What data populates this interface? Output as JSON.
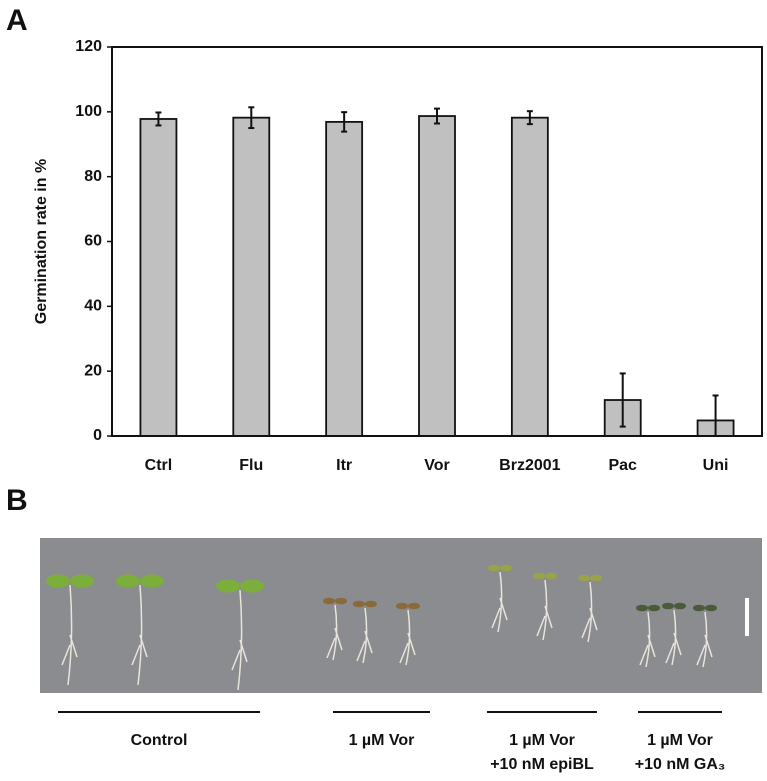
{
  "chart_data": {
    "type": "bar",
    "ylabel": "Germination rate in %",
    "categories": [
      "Ctrl",
      "Flu",
      "Itr",
      "Vor",
      "Brz2001",
      "Pac",
      "Uni"
    ],
    "values": [
      97.8,
      98.2,
      96.9,
      98.7,
      98.2,
      11.1,
      4.8
    ],
    "errors": [
      2.0,
      3.2,
      3.0,
      2.3,
      2.0,
      8.2,
      7.7
    ],
    "color": "#c0c0c0",
    "ylim": [
      0,
      120
    ],
    "yticks": [
      0,
      20,
      40,
      60,
      80,
      100,
      120
    ]
  },
  "panel_labels": [
    "A",
    "B"
  ],
  "photo_groups": [
    [
      "Control"
    ],
    [
      "1 µM Vor"
    ],
    [
      "1 µM Vor",
      "+10 nM epiBL"
    ],
    [
      "1 µM Vor",
      "+10 nM GA₃"
    ]
  ]
}
